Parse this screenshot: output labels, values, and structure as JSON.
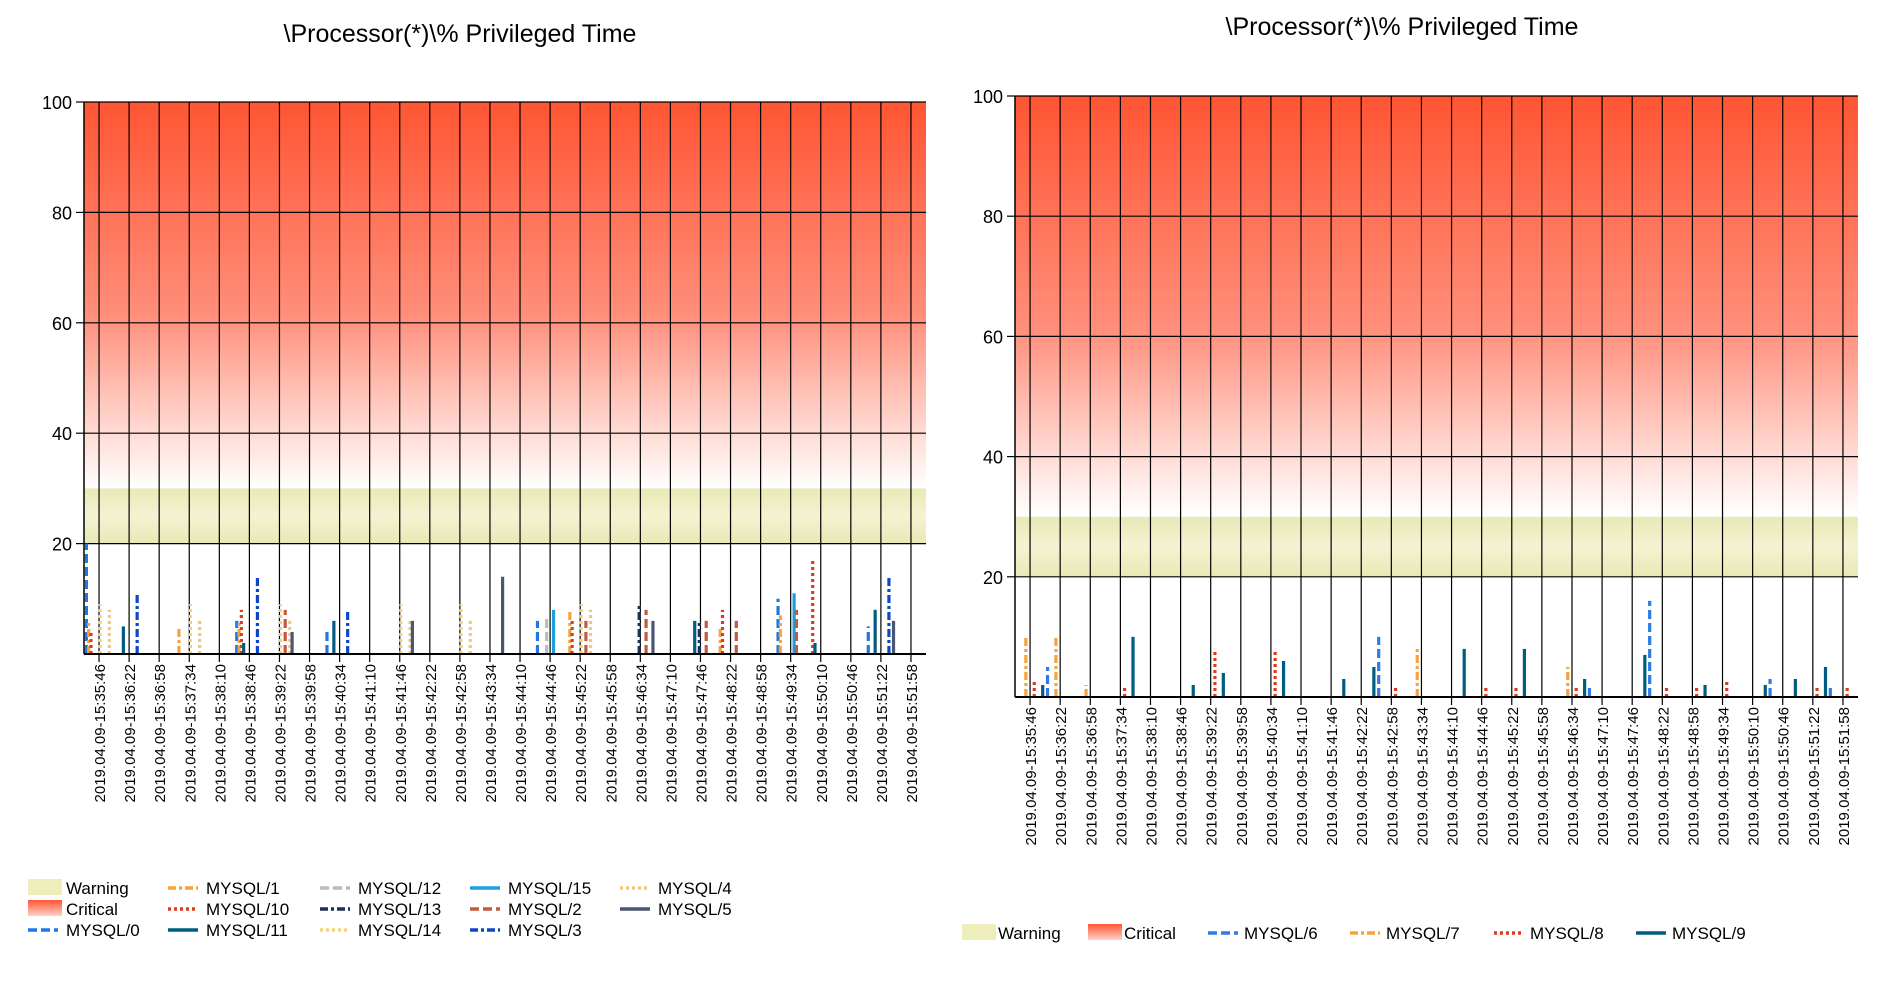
{
  "chart_data": [
    {
      "type": "bar",
      "title": "\\Processor(*)\\% Privileged Time",
      "xlabel": "",
      "ylabel": "",
      "ylim": [
        0,
        100
      ],
      "yticks": [
        20,
        40,
        60,
        80,
        100
      ],
      "grid": true,
      "legend_position": "bottom",
      "bands": [
        {
          "name": "Warning",
          "from": 20,
          "to": 30,
          "color": "#eeeebb"
        },
        {
          "name": "Critical",
          "from": 30,
          "to": 100,
          "color": "#ff5533"
        }
      ],
      "categories": [
        "2019.04.09-15:35:46",
        "2019.04.09-15:36:22",
        "2019.04.09-15:36:58",
        "2019.04.09-15:37:34",
        "2019.04.09-15:38:10",
        "2019.04.09-15:38:46",
        "2019.04.09-15:39:22",
        "2019.04.09-15:39:58",
        "2019.04.09-15:40:34",
        "2019.04.09-15:41:10",
        "2019.04.09-15:41:46",
        "2019.04.09-15:42:22",
        "2019.04.09-15:42:58",
        "2019.04.09-15:43:34",
        "2019.04.09-15:44:10",
        "2019.04.09-15:44:46",
        "2019.04.09-15:45:22",
        "2019.04.09-15:45:58",
        "2019.04.09-15:46:34",
        "2019.04.09-15:47:10",
        "2019.04.09-15:47:46",
        "2019.04.09-15:48:22",
        "2019.04.09-15:48:58",
        "2019.04.09-15:49:34",
        "2019.04.09-15:50:10",
        "2019.04.09-15:50:46",
        "2019.04.09-15:51:22",
        "2019.04.09-15:51:58"
      ],
      "series": [
        {
          "name": "MYSQL/0",
          "color": "#1f77e6",
          "dash": "dashed",
          "values": [
            20,
            0,
            0,
            0,
            0,
            6,
            0,
            0,
            4,
            0,
            0,
            0,
            0,
            0,
            0,
            6,
            0,
            0,
            0,
            0,
            0,
            0,
            0,
            10,
            0,
            0,
            5,
            0
          ]
        },
        {
          "name": "MYSQL/1",
          "color": "#f5a33a",
          "dash": "dashdot",
          "values": [
            6,
            0,
            0,
            5,
            0,
            6,
            0,
            0,
            0,
            0,
            0,
            0,
            0,
            0,
            0,
            0,
            8,
            0,
            0,
            0,
            0,
            5,
            0,
            7,
            0,
            0,
            0,
            0
          ]
        },
        {
          "name": "MYSQL/10",
          "color": "#dd3b1f",
          "dash": "dotted",
          "values": [
            4,
            0,
            0,
            0,
            0,
            8,
            0,
            0,
            0,
            0,
            0,
            0,
            0,
            0,
            0,
            0,
            6,
            0,
            0,
            0,
            0,
            8,
            0,
            0,
            17,
            0,
            0,
            0
          ]
        },
        {
          "name": "MYSQL/11",
          "color": "#005c80",
          "dash": "solid",
          "values": [
            0,
            5,
            0,
            0,
            0,
            2,
            0,
            0,
            6,
            0,
            0,
            0,
            0,
            0,
            0,
            0,
            0,
            0,
            0,
            0,
            6,
            0,
            0,
            0,
            2,
            0,
            8,
            0
          ]
        },
        {
          "name": "MYSQL/12",
          "color": "#bbbbbb",
          "dash": "dashed",
          "values": [
            0,
            0,
            0,
            0,
            0,
            0,
            0,
            0,
            0,
            0,
            0,
            0,
            0,
            0,
            0,
            7,
            0,
            0,
            0,
            0,
            0,
            0,
            0,
            0,
            0,
            0,
            0,
            0
          ]
        },
        {
          "name": "MYSQL/13",
          "color": "#1c2f55",
          "dash": "dashdot",
          "values": [
            0,
            0,
            0,
            0,
            0,
            0,
            0,
            0,
            0,
            0,
            0,
            0,
            0,
            0,
            0,
            0,
            0,
            0,
            9,
            0,
            6,
            0,
            0,
            0,
            0,
            0,
            0,
            0
          ]
        },
        {
          "name": "MYSQL/14",
          "color": "#f8d27a",
          "dash": "dotted",
          "values": [
            9,
            0,
            0,
            9,
            0,
            0,
            9,
            0,
            0,
            0,
            9,
            0,
            9,
            0,
            0,
            0,
            9,
            0,
            0,
            0,
            0,
            0,
            0,
            0,
            0,
            0,
            0,
            0
          ]
        },
        {
          "name": "MYSQL/15",
          "color": "#1aa0dd",
          "dash": "solid",
          "values": [
            0,
            0,
            0,
            0,
            0,
            0,
            0,
            0,
            0,
            0,
            0,
            0,
            0,
            0,
            0,
            8,
            0,
            0,
            0,
            0,
            0,
            0,
            0,
            11,
            0,
            0,
            0,
            0
          ]
        },
        {
          "name": "MYSQL/2",
          "color": "#c45a3c",
          "dash": "dashed",
          "values": [
            0,
            0,
            0,
            0,
            0,
            0,
            8,
            0,
            0,
            0,
            0,
            0,
            0,
            0,
            0,
            0,
            6,
            0,
            8,
            0,
            6,
            6,
            0,
            8,
            0,
            0,
            0,
            0
          ]
        },
        {
          "name": "MYSQL/3",
          "color": "#0d47c9",
          "dash": "dashdot",
          "values": [
            0,
            11,
            0,
            0,
            0,
            14,
            0,
            0,
            8,
            0,
            0,
            0,
            0,
            0,
            0,
            0,
            0,
            0,
            0,
            0,
            0,
            0,
            0,
            0,
            0,
            0,
            14,
            0
          ]
        },
        {
          "name": "MYSQL/4",
          "color": "#f3c77a",
          "dash": "dotted",
          "values": [
            8,
            0,
            0,
            6,
            0,
            0,
            6,
            0,
            0,
            0,
            6,
            0,
            6,
            0,
            0,
            0,
            8,
            0,
            0,
            0,
            0,
            0,
            0,
            0,
            0,
            0,
            0,
            0
          ]
        },
        {
          "name": "MYSQL/5",
          "color": "#4a5570",
          "dash": "solid",
          "values": [
            0,
            0,
            0,
            0,
            0,
            0,
            4,
            0,
            0,
            0,
            6,
            0,
            0,
            14,
            0,
            0,
            0,
            0,
            6,
            0,
            0,
            0,
            0,
            0,
            0,
            0,
            6,
            0
          ]
        }
      ]
    },
    {
      "type": "bar",
      "title": "\\Processor(*)\\% Privileged Time",
      "xlabel": "",
      "ylabel": "",
      "ylim": [
        0,
        100
      ],
      "yticks": [
        20,
        40,
        60,
        80,
        100
      ],
      "grid": true,
      "legend_position": "bottom",
      "bands": [
        {
          "name": "Warning",
          "from": 20,
          "to": 30,
          "color": "#eeeebb"
        },
        {
          "name": "Critical",
          "from": 30,
          "to": 100,
          "color": "#ff5533"
        }
      ],
      "categories": [
        "2019.04.09-15:35:46",
        "2019.04.09-15:36:22",
        "2019.04.09-15:36:58",
        "2019.04.09-15:37:34",
        "2019.04.09-15:38:10",
        "2019.04.09-15:38:46",
        "2019.04.09-15:39:22",
        "2019.04.09-15:39:58",
        "2019.04.09-15:40:34",
        "2019.04.09-15:41:10",
        "2019.04.09-15:41:46",
        "2019.04.09-15:42:22",
        "2019.04.09-15:42:58",
        "2019.04.09-15:43:34",
        "2019.04.09-15:44:10",
        "2019.04.09-15:44:46",
        "2019.04.09-15:45:22",
        "2019.04.09-15:45:58",
        "2019.04.09-15:46:34",
        "2019.04.09-15:47:10",
        "2019.04.09-15:47:46",
        "2019.04.09-15:48:22",
        "2019.04.09-15:48:58",
        "2019.04.09-15:49:34",
        "2019.04.09-15:50:10",
        "2019.04.09-15:50:46",
        "2019.04.09-15:51:22",
        "2019.04.09-15:51:58"
      ],
      "series": [
        {
          "name": "MYSQL/6",
          "color": "#2e7be6",
          "dash": "dashed",
          "values": [
            0,
            5,
            0,
            0,
            0,
            0,
            0,
            0,
            0,
            0,
            0,
            0,
            10,
            0,
            0,
            0,
            0,
            0,
            0,
            2,
            0,
            16,
            0,
            0,
            0,
            3,
            0,
            2
          ]
        },
        {
          "name": "MYSQL/7",
          "color": "#f5a33a",
          "dash": "dashdot",
          "values": [
            10,
            10,
            2,
            0,
            0,
            0,
            0,
            0,
            0,
            0,
            0,
            0,
            0,
            8,
            0,
            0,
            0,
            0,
            5,
            0,
            0,
            0,
            0,
            0,
            0,
            0,
            0,
            0
          ]
        },
        {
          "name": "MYSQL/8",
          "color": "#dd3b1f",
          "dash": "dotted",
          "values": [
            3,
            0,
            0,
            2,
            0,
            0,
            8,
            0,
            8,
            0,
            0,
            0,
            2,
            0,
            0,
            2,
            2,
            0,
            2,
            0,
            0,
            2,
            2,
            3,
            0,
            0,
            2,
            2
          ]
        },
        {
          "name": "MYSQL/9",
          "color": "#005c80",
          "dash": "solid",
          "values": [
            2,
            0,
            0,
            10,
            0,
            2,
            4,
            0,
            6,
            0,
            3,
            5,
            0,
            0,
            8,
            0,
            8,
            0,
            3,
            0,
            7,
            0,
            2,
            0,
            2,
            3,
            5,
            0
          ]
        }
      ]
    }
  ]
}
